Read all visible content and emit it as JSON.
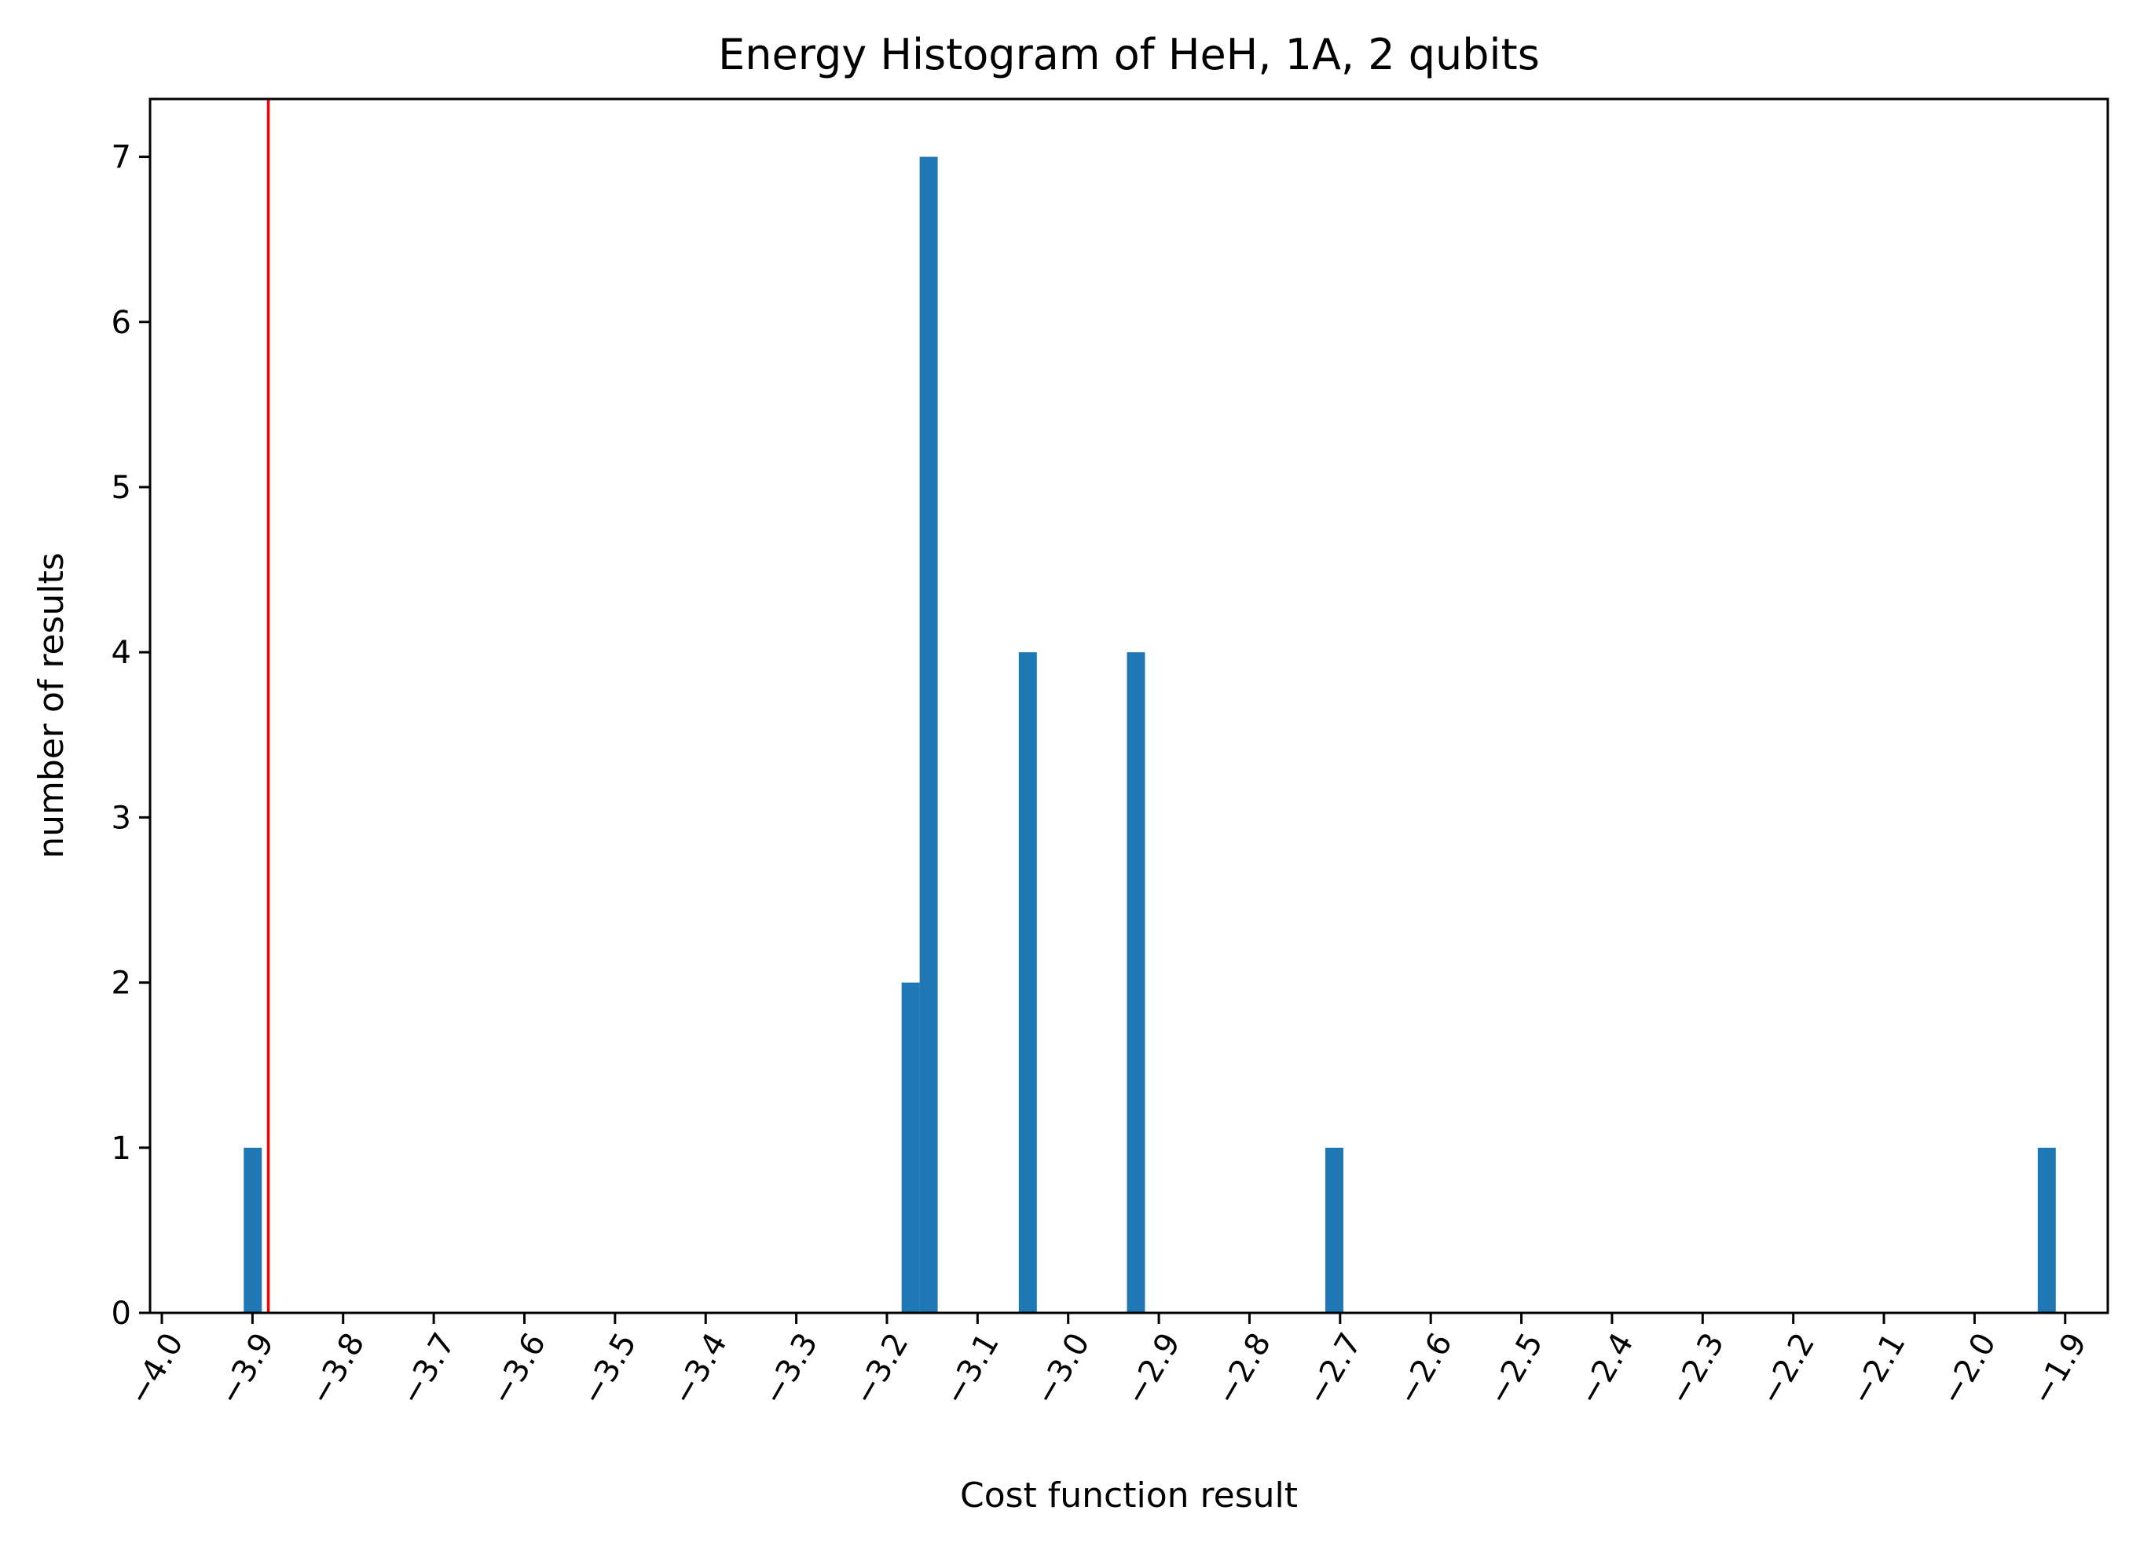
{
  "chart_data": {
    "type": "bar",
    "title": "Energy Histogram of HeH, 1A, 2 qubits",
    "xlabel": "Cost function result",
    "ylabel": "number of results",
    "xlim": [
      -4.013,
      -1.853
    ],
    "ylim": [
      0,
      7.35
    ],
    "x_ticks": [
      {
        "value": -4.0,
        "label": "−4.0"
      },
      {
        "value": -3.9,
        "label": "−3.9"
      },
      {
        "value": -3.8,
        "label": "−3.8"
      },
      {
        "value": -3.7,
        "label": "−3.7"
      },
      {
        "value": -3.6,
        "label": "−3.6"
      },
      {
        "value": -3.5,
        "label": "−3.5"
      },
      {
        "value": -3.4,
        "label": "−3.4"
      },
      {
        "value": -3.3,
        "label": "−3.3"
      },
      {
        "value": -3.2,
        "label": "−3.2"
      },
      {
        "value": -3.1,
        "label": "−3.1"
      },
      {
        "value": -3.0,
        "label": "−3.0"
      },
      {
        "value": -2.9,
        "label": "−2.9"
      },
      {
        "value": -2.8,
        "label": "−2.8"
      },
      {
        "value": -2.7,
        "label": "−2.7"
      },
      {
        "value": -2.6,
        "label": "−2.6"
      },
      {
        "value": -2.5,
        "label": "−2.5"
      },
      {
        "value": -2.4,
        "label": "−2.4"
      },
      {
        "value": -2.3,
        "label": "−2.3"
      },
      {
        "value": -2.2,
        "label": "−2.2"
      },
      {
        "value": -2.1,
        "label": "−2.1"
      },
      {
        "value": -2.0,
        "label": "−2.0"
      },
      {
        "value": -1.9,
        "label": "−1.9"
      }
    ],
    "y_ticks": [
      {
        "value": 0,
        "label": "0"
      },
      {
        "value": 1,
        "label": "1"
      },
      {
        "value": 2,
        "label": "2"
      },
      {
        "value": 3,
        "label": "3"
      },
      {
        "value": 4,
        "label": "4"
      },
      {
        "value": 5,
        "label": "5"
      },
      {
        "value": 6,
        "label": "6"
      },
      {
        "value": 7,
        "label": "7"
      }
    ],
    "bins": [
      {
        "x0": -3.9096,
        "x1": -3.8897,
        "count": 1
      },
      {
        "x0": -3.1838,
        "x1": -3.1639,
        "count": 2
      },
      {
        "x0": -3.1639,
        "x1": -3.144,
        "count": 7
      },
      {
        "x0": -3.0545,
        "x1": -3.0346,
        "count": 4
      },
      {
        "x0": -2.9352,
        "x1": -2.9153,
        "count": 4
      },
      {
        "x0": -2.7163,
        "x1": -2.6964,
        "count": 1
      },
      {
        "x0": -1.9303,
        "x1": -1.9104,
        "count": 1
      }
    ],
    "reference_line": {
      "x": -3.8825,
      "color": "#ff0000"
    },
    "bar_color": "#1f77b4",
    "grid": false,
    "legend": "none"
  }
}
